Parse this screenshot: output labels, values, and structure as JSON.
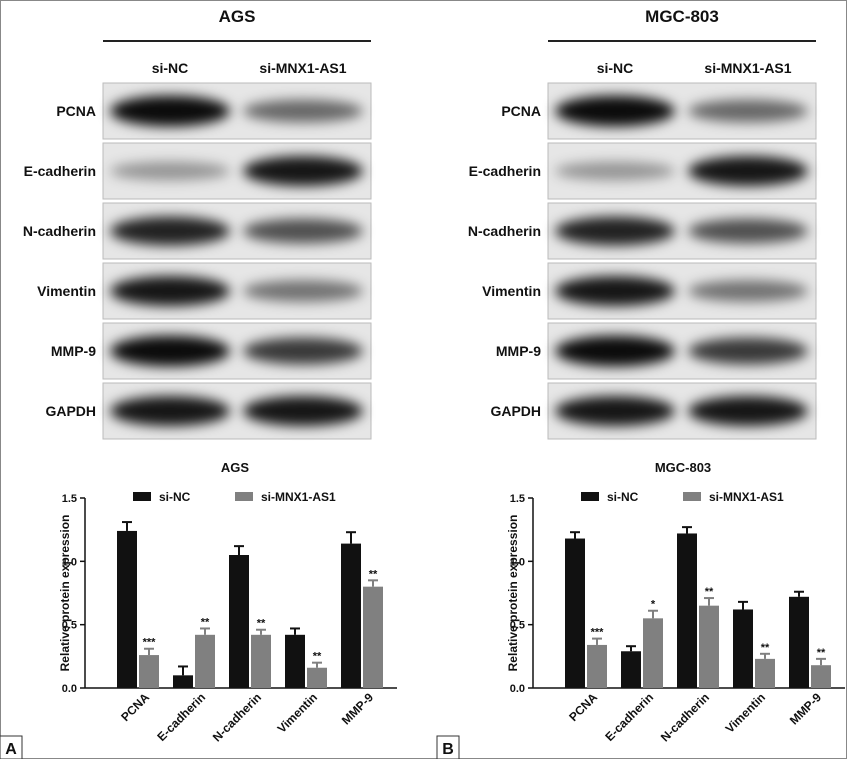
{
  "blots": [
    {
      "title": "AGS",
      "columns": [
        "si-NC",
        "si-MNX1-AS1"
      ],
      "rows": [
        "PCNA",
        "E-cadherin",
        "N-cadherin",
        "Vimentin",
        "MMP-9",
        "GAPDH"
      ]
    },
    {
      "title": "MGC-803",
      "columns": [
        "si-NC",
        "si-MNX1-AS1"
      ],
      "rows": [
        "PCNA",
        "E-cadherin",
        "N-cadherin",
        "Vimentin",
        "MMP-9",
        "GAPDH"
      ]
    }
  ],
  "panel_labels": [
    "A",
    "B"
  ],
  "chart_data": [
    {
      "type": "bar",
      "title": "AGS",
      "y_label": "Relative protein expression",
      "categories": [
        "PCNA",
        "E-cadherin",
        "N-cadherin",
        "Vimentin",
        "MMP-9"
      ],
      "series": [
        {
          "name": "si-NC",
          "color": "#111111",
          "values": [
            1.24,
            0.1,
            1.05,
            0.42,
            1.14
          ],
          "errors": [
            0.07,
            0.07,
            0.07,
            0.05,
            0.09
          ]
        },
        {
          "name": "si-MNX1-AS1",
          "color": "#808080",
          "values": [
            0.26,
            0.42,
            0.42,
            0.16,
            0.8
          ],
          "errors": [
            0.05,
            0.05,
            0.04,
            0.04,
            0.05
          ],
          "annotations": [
            "***",
            "**",
            "**",
            "**",
            "**"
          ]
        }
      ],
      "ylim": [
        0,
        1.5
      ],
      "yticks": [
        {
          "value": 0,
          "label": "0.0"
        },
        0.5,
        {
          "value": 1,
          "label": "1.0"
        },
        1.5
      ]
    },
    {
      "type": "bar",
      "title": "MGC-803",
      "y_label": "Relative protein expression",
      "categories": [
        "PCNA",
        "E-cadherin",
        "N-cadherin",
        "Vimentin",
        "MMP-9"
      ],
      "series": [
        {
          "name": "si-NC",
          "color": "#111111",
          "values": [
            1.18,
            0.29,
            1.22,
            0.62,
            0.72
          ],
          "errors": [
            0.05,
            0.04,
            0.05,
            0.06,
            0.04
          ]
        },
        {
          "name": "si-MNX1-AS1",
          "color": "#808080",
          "values": [
            0.34,
            0.55,
            0.65,
            0.23,
            0.18
          ],
          "errors": [
            0.05,
            0.06,
            0.06,
            0.04,
            0.05
          ],
          "annotations": [
            "***",
            "*",
            "**",
            "**",
            "**"
          ]
        }
      ],
      "ylim": [
        0,
        1.5
      ],
      "yticks": [
        {
          "value": 0,
          "label": "0.0"
        },
        0.5,
        {
          "value": 1,
          "label": "1.0"
        },
        1.5
      ]
    }
  ]
}
